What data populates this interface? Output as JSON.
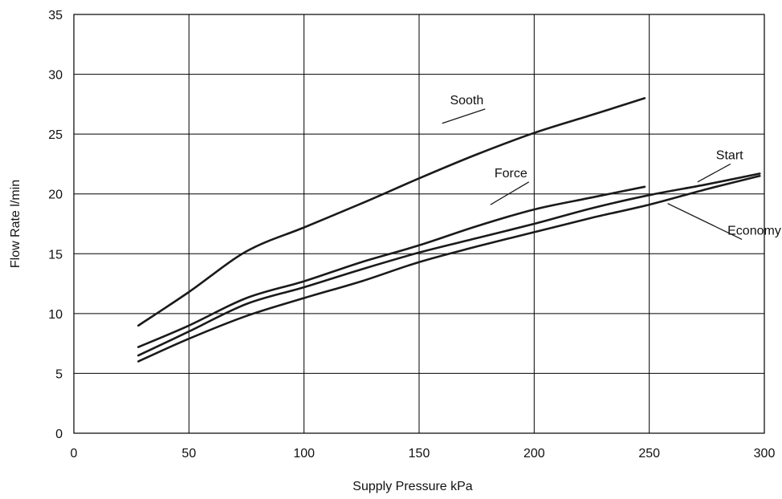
{
  "chart_data": {
    "type": "line",
    "title": "",
    "xlabel": "Supply Pressure  kPa",
    "ylabel": "Flow Rate l/min",
    "xlim": [
      0,
      300
    ],
    "ylim": [
      0,
      35
    ],
    "x_ticks": [
      0,
      50,
      100,
      150,
      200,
      250,
      300
    ],
    "x_tick_labels": [
      "0",
      "50",
      "100",
      "150",
      "200",
      "250",
      "300"
    ],
    "y_ticks": [
      0,
      5,
      10,
      15,
      20,
      25,
      30,
      35
    ],
    "y_tick_labels": [
      "0",
      "5",
      "10",
      "15",
      "20",
      "25",
      "30",
      "35"
    ],
    "grid": true,
    "legend": "inline labels with leader lines",
    "series": [
      {
        "name": "Sooth",
        "x": [
          28,
          50,
          75,
          100,
          125,
          150,
          175,
          200,
          225,
          248
        ],
        "y": [
          9.0,
          11.8,
          15.2,
          17.2,
          19.2,
          21.3,
          23.3,
          25.1,
          26.6,
          28.0
        ]
      },
      {
        "name": "Force",
        "x": [
          28,
          50,
          75,
          100,
          125,
          150,
          175,
          200,
          225,
          248
        ],
        "y": [
          7.2,
          9.0,
          11.3,
          12.7,
          14.3,
          15.7,
          17.3,
          18.7,
          19.7,
          20.6
        ]
      },
      {
        "name": "Start",
        "x": [
          28,
          50,
          75,
          100,
          125,
          150,
          175,
          200,
          225,
          250,
          275,
          298
        ],
        "y": [
          6.5,
          8.5,
          10.8,
          12.2,
          13.7,
          15.1,
          16.3,
          17.5,
          18.8,
          19.9,
          20.8,
          21.7
        ]
      },
      {
        "name": "Economy",
        "x": [
          28,
          50,
          75,
          100,
          125,
          150,
          175,
          200,
          225,
          250,
          275,
          298
        ],
        "y": [
          6.0,
          7.9,
          9.8,
          11.3,
          12.7,
          14.3,
          15.6,
          16.8,
          18.0,
          19.1,
          20.4,
          21.5
        ]
      }
    ],
    "annotations": [
      {
        "text": "Sooth",
        "series": "Sooth",
        "label_at": [
          178,
          27.5
        ],
        "point_at": [
          160,
          25.9
        ],
        "anchor": "end"
      },
      {
        "text": "Force",
        "series": "Force",
        "label_at": [
          197,
          21.4
        ],
        "point_at": [
          181,
          19.1
        ],
        "anchor": "end"
      },
      {
        "text": "Start",
        "series": "Start",
        "label_at": [
          279,
          22.9
        ],
        "point_at": [
          271,
          21.0
        ],
        "anchor": "start"
      },
      {
        "text": "Economy",
        "series": "Economy",
        "label_at": [
          284,
          16.6
        ],
        "point_at": [
          258,
          19.2
        ],
        "anchor": "start"
      }
    ]
  }
}
